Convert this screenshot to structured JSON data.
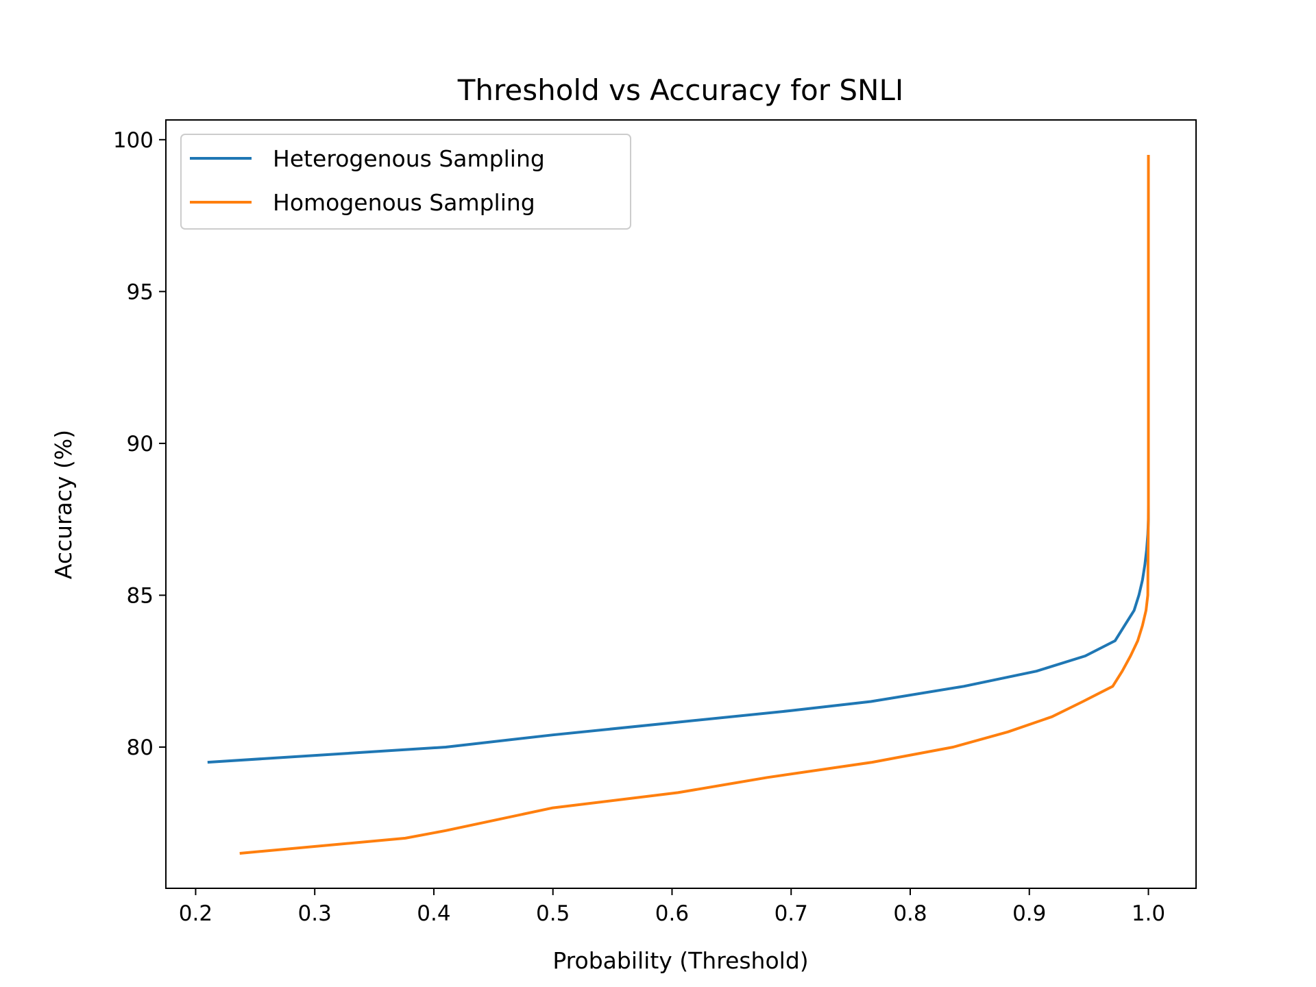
{
  "chart_data": {
    "type": "line",
    "title": "Threshold vs Accuracy for SNLI",
    "xlabel": "Probability (Threshold)",
    "ylabel": "Accuracy (%)",
    "xlim": [
      0.175,
      1.04
    ],
    "ylim": [
      75.35,
      100.65
    ],
    "xticks": [
      0.2,
      0.3,
      0.4,
      0.5,
      0.6,
      0.7,
      0.8,
      0.9,
      1.0
    ],
    "xtick_labels": [
      "0.2",
      "0.3",
      "0.4",
      "0.5",
      "0.6",
      "0.7",
      "0.8",
      "0.9",
      "1.0"
    ],
    "yticks": [
      80,
      85,
      90,
      95,
      100
    ],
    "ytick_labels": [
      "80",
      "85",
      "90",
      "95",
      "100"
    ],
    "grid": false,
    "legend_position": "top-left",
    "series": [
      {
        "name": "Heterogenous Sampling",
        "color": "#1f77b4",
        "points": [
          [
            0.21,
            79.5
          ],
          [
            0.41,
            80.0
          ],
          [
            0.5,
            80.4
          ],
          [
            0.6,
            80.8
          ],
          [
            0.7,
            81.2
          ],
          [
            0.767,
            81.5
          ],
          [
            0.845,
            82.0
          ],
          [
            0.906,
            82.5
          ],
          [
            0.947,
            83.0
          ],
          [
            0.972,
            83.5
          ],
          [
            0.98,
            84.0
          ],
          [
            0.988,
            84.5
          ],
          [
            0.992,
            85.0
          ],
          [
            0.995,
            85.5
          ],
          [
            0.997,
            86.0
          ],
          [
            0.9985,
            86.5
          ],
          [
            0.9995,
            87.0
          ],
          [
            1.0,
            87.5
          ],
          [
            1.0,
            88.5
          ]
        ]
      },
      {
        "name": "Homogenous Sampling",
        "color": "#ff7f0e",
        "points": [
          [
            0.237,
            76.5
          ],
          [
            0.376,
            77.0
          ],
          [
            0.41,
            77.25
          ],
          [
            0.5,
            78.0
          ],
          [
            0.605,
            78.5
          ],
          [
            0.68,
            79.0
          ],
          [
            0.768,
            79.5
          ],
          [
            0.836,
            80.0
          ],
          [
            0.882,
            80.5
          ],
          [
            0.919,
            81.0
          ],
          [
            0.945,
            81.5
          ],
          [
            0.97,
            82.0
          ],
          [
            0.978,
            82.5
          ],
          [
            0.985,
            83.0
          ],
          [
            0.991,
            83.5
          ],
          [
            0.995,
            84.0
          ],
          [
            0.998,
            84.5
          ],
          [
            0.9995,
            85.0
          ],
          [
            1.0,
            88.0
          ],
          [
            1.0,
            92.0
          ],
          [
            1.0,
            96.0
          ],
          [
            1.0,
            99.5
          ]
        ]
      }
    ]
  }
}
